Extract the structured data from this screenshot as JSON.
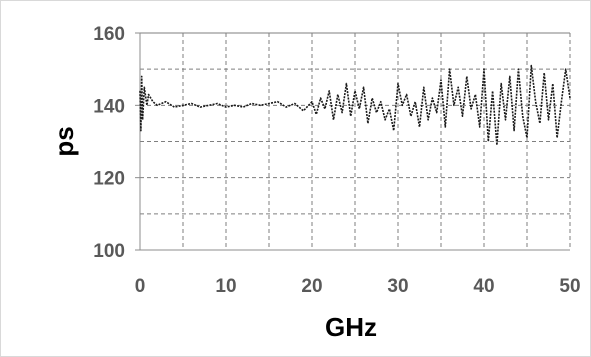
{
  "chart_data": {
    "type": "line",
    "title": "",
    "xlabel": "GHz",
    "ylabel": "ps",
    "xlim": [
      0,
      50
    ],
    "ylim": [
      100,
      160
    ],
    "x_ticks": [
      "0",
      "10",
      "20",
      "30",
      "40",
      "50"
    ],
    "y_ticks": [
      "100",
      "120",
      "140",
      "160"
    ],
    "x_grid": [
      5,
      10,
      15,
      20,
      25,
      30,
      35,
      40,
      45,
      50
    ],
    "y_grid": [
      110,
      120,
      130,
      140,
      150,
      160
    ],
    "grid": true,
    "grid_style": "dashed",
    "legend": "none",
    "colors": {
      "line": "#1a1a1a",
      "grid": "#7f7f7f",
      "tick_text": "#595959",
      "axis_title": "#000000"
    },
    "series": [
      {
        "line_style": "dotted",
        "x": [
          0.0,
          0.1,
          0.2,
          0.3,
          0.5,
          0.8,
          1.0,
          1.5,
          2,
          3,
          4,
          5,
          6,
          7,
          8,
          9,
          10,
          11,
          12,
          13,
          14,
          15,
          16,
          17,
          18,
          19,
          20,
          20.5,
          21,
          21.5,
          22,
          22.5,
          23,
          23.5,
          24,
          24.5,
          25,
          25.5,
          26,
          26.5,
          27,
          27.5,
          28,
          28.5,
          29,
          29.5,
          30,
          30.5,
          31,
          31.5,
          32,
          32.5,
          33,
          33.5,
          34,
          34.5,
          35,
          35.5,
          36,
          36.5,
          37,
          37.5,
          38,
          38.5,
          39,
          39.5,
          40,
          40.5,
          41,
          41.5,
          42,
          42.5,
          43,
          43.5,
          44,
          44.5,
          45,
          45.5,
          46,
          46.5,
          47,
          47.5,
          48,
          48.5,
          49,
          49.5,
          50
        ],
        "y": [
          144,
          133,
          148,
          136,
          145,
          140,
          143,
          141,
          140,
          141,
          139.5,
          140,
          140.5,
          139.5,
          140,
          140.5,
          139.5,
          140,
          139.5,
          140.5,
          140,
          140.5,
          141,
          139.5,
          140.5,
          138.5,
          141,
          137.5,
          142,
          139,
          144,
          136,
          143,
          138,
          146,
          137,
          144,
          139,
          145,
          135,
          142,
          138,
          141,
          136,
          139,
          133,
          146,
          140,
          143,
          137,
          141,
          134,
          145,
          136,
          142,
          138,
          147,
          134,
          150,
          140,
          145,
          137,
          148,
          139,
          143,
          134,
          150,
          130,
          144,
          129,
          146,
          136,
          148,
          133,
          150,
          137,
          131,
          151,
          141,
          135,
          149,
          136,
          146,
          131,
          141,
          150,
          142
        ]
      }
    ]
  }
}
